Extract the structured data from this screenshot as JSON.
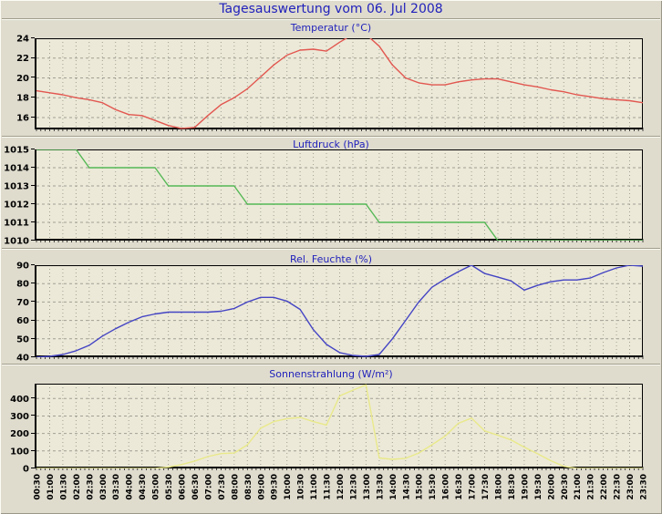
{
  "page": {
    "title": "Tagesauswertung vom 06. Jul 2008"
  },
  "colors": {
    "page_bg": "#DFDCCE",
    "plot_bg": "#ECE9D8",
    "grid": "#A0A094",
    "axis": "#000000",
    "title_text": "#2222BB",
    "temperature_line": "#E25750",
    "pressure_line": "#55B855",
    "humidity_line": "#4444C4",
    "radiation_line": "#E9E98A"
  },
  "x_axis": {
    "labels": [
      "00:30",
      "01:00",
      "01:30",
      "02:00",
      "02:30",
      "03:00",
      "03:30",
      "04:00",
      "04:30",
      "05:00",
      "05:30",
      "06:00",
      "06:30",
      "07:00",
      "07:30",
      "08:00",
      "08:30",
      "09:00",
      "09:30",
      "10:00",
      "10:30",
      "11:00",
      "11:30",
      "12:00",
      "12:30",
      "13:00",
      "13:30",
      "14:00",
      "14:30",
      "15:00",
      "15:30",
      "16:00",
      "16:30",
      "17:00",
      "17:30",
      "18:00",
      "18:30",
      "19:00",
      "19:30",
      "20:00",
      "20:30",
      "21:00",
      "21:30",
      "22:00",
      "22:30",
      "23:00",
      "23:30"
    ]
  },
  "chart_data": [
    {
      "type": "line",
      "title": "Temperatur (°C)",
      "color_key": "temperature_line",
      "ylim": [
        14.8,
        24
      ],
      "yticks": [
        16,
        18,
        20,
        22,
        24
      ],
      "grid": true,
      "legend": "none",
      "values": [
        18.7,
        18.5,
        18.3,
        18.0,
        17.8,
        17.5,
        16.8,
        16.3,
        16.2,
        15.7,
        15.2,
        14.9,
        15.0,
        16.2,
        17.3,
        18.0,
        18.9,
        20.1,
        21.3,
        22.3,
        22.8,
        22.9,
        22.7,
        23.6,
        24.4,
        24.4,
        23.2,
        21.3,
        20.0,
        19.5,
        19.3,
        19.3,
        19.6,
        19.8,
        19.9,
        19.9,
        19.6,
        19.3,
        19.1,
        18.8,
        18.6,
        18.3,
        18.1,
        17.9,
        17.8,
        17.7,
        17.5
      ]
    },
    {
      "type": "line",
      "title": "Luftdruck (hPa)",
      "color_key": "pressure_line",
      "ylim": [
        1010,
        1015
      ],
      "yticks": [
        1010,
        1011,
        1012,
        1013,
        1014,
        1015
      ],
      "grid": true,
      "legend": "none",
      "values": [
        1015,
        1015,
        1015,
        1015,
        1014,
        1014,
        1014,
        1014,
        1014,
        1014,
        1013,
        1013,
        1013,
        1013,
        1013,
        1013,
        1012,
        1012,
        1012,
        1012,
        1012,
        1012,
        1012,
        1012,
        1012,
        1012,
        1011,
        1011,
        1011,
        1011,
        1011,
        1011,
        1011,
        1011,
        1011,
        1010,
        1010,
        1010,
        1010,
        1010,
        1010,
        1010,
        1010,
        1010,
        1010,
        1010,
        1010
      ]
    },
    {
      "type": "line",
      "title": "Rel. Feuchte (%)",
      "color_key": "humidity_line",
      "ylim": [
        40,
        90
      ],
      "yticks": [
        40,
        50,
        60,
        70,
        80,
        90
      ],
      "grid": true,
      "legend": "none",
      "values": [
        40,
        40.5,
        41.5,
        43.5,
        46.5,
        51.5,
        55.5,
        59,
        62,
        63.5,
        64.5,
        64.5,
        64.5,
        64.5,
        65,
        66.5,
        70,
        72.5,
        72.5,
        70.5,
        66,
        55,
        47,
        42.5,
        41,
        40.5,
        41.5,
        50,
        60,
        70,
        78,
        82.5,
        86.5,
        90,
        85.5,
        83.5,
        81.5,
        76.5,
        79,
        81,
        82,
        82,
        83,
        86,
        88.5,
        90,
        89.5
      ]
    },
    {
      "type": "line",
      "title": "Sonnenstrahlung (W/m²)",
      "color_key": "radiation_line",
      "ylim": [
        0,
        485
      ],
      "yticks": [
        0,
        100,
        200,
        300,
        400
      ],
      "grid": true,
      "legend": "none",
      "values": [
        0,
        0,
        0,
        0,
        0,
        0,
        0,
        0,
        0,
        0,
        8,
        22,
        42,
        68,
        85,
        88,
        135,
        230,
        268,
        285,
        292,
        268,
        248,
        415,
        448,
        478,
        60,
        52,
        58,
        88,
        135,
        185,
        258,
        288,
        215,
        190,
        163,
        122,
        85,
        45,
        12,
        0,
        0,
        0,
        0,
        0,
        0
      ]
    }
  ]
}
